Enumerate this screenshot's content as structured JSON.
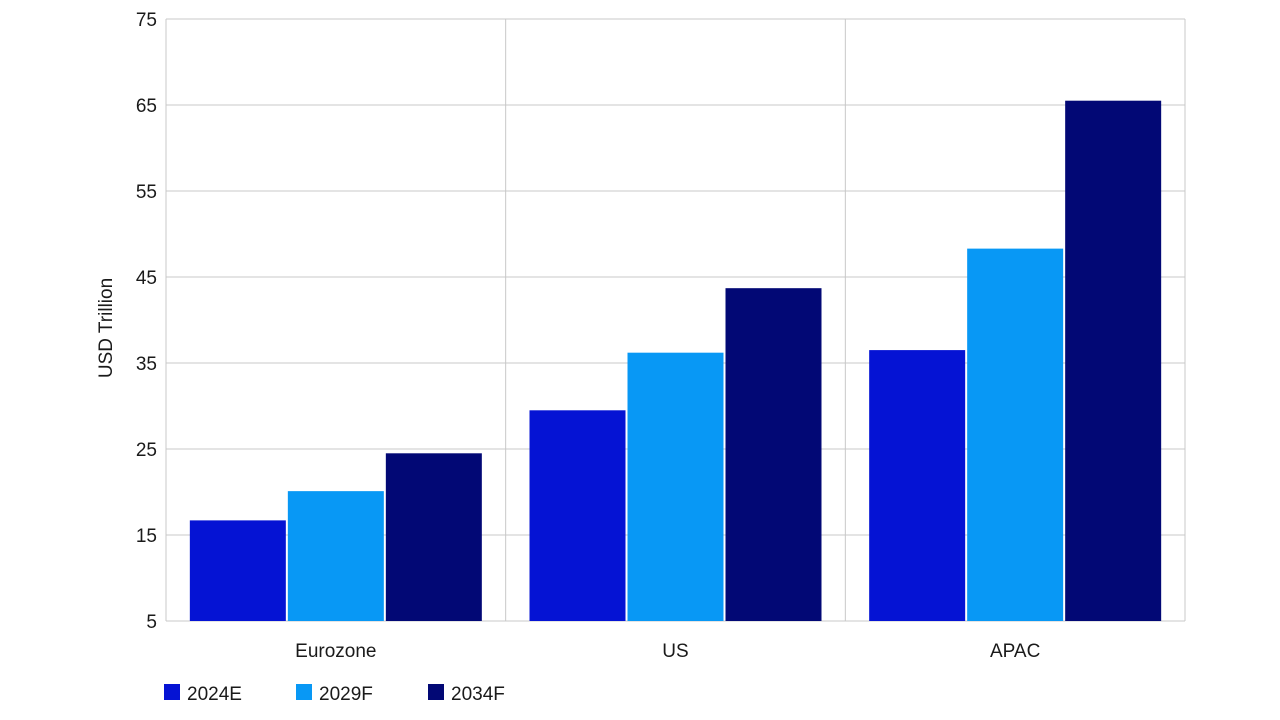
{
  "chart_data": {
    "type": "bar",
    "title": "",
    "xlabel": "",
    "ylabel": "USD Trillion",
    "ylim": [
      5,
      75
    ],
    "yticks": [
      5,
      15,
      25,
      35,
      45,
      55,
      65,
      75
    ],
    "categories": [
      "Eurozone",
      "US",
      "APAC"
    ],
    "series": [
      {
        "name": "2024E",
        "color": "#0513d4",
        "values": [
          16.7,
          29.5,
          36.5
        ]
      },
      {
        "name": "2029F",
        "color": "#0898f5",
        "values": [
          20.1,
          36.2,
          48.3
        ]
      },
      {
        "name": "2034F",
        "color": "#020875",
        "values": [
          24.5,
          43.7,
          65.5
        ]
      }
    ],
    "grid": true,
    "legend_position": "bottom-left"
  }
}
